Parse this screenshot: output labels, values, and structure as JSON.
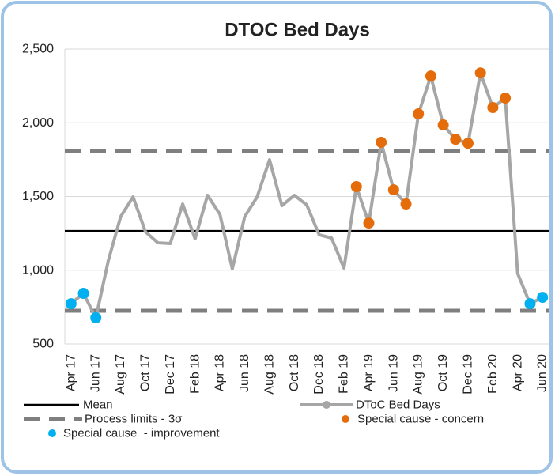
{
  "chart_data": {
    "type": "line",
    "title": "DTOC Bed Days",
    "categories": [
      "Apr 17",
      null,
      "Jun 17",
      null,
      "Aug 17",
      null,
      "Oct 17",
      null,
      "Dec 17",
      null,
      "Feb 18",
      null,
      "Apr 18",
      null,
      "Jun 18",
      null,
      "Aug 18",
      null,
      "Oct 18",
      null,
      "Dec 18",
      null,
      "Feb 19",
      null,
      "Apr 19",
      null,
      "Jun 19",
      null,
      "Aug 19",
      null,
      "Oct 19",
      null,
      "Dec 19",
      null,
      "Feb 20",
      null,
      "Apr 20",
      null,
      "Jun 20"
    ],
    "series": [
      {
        "name": "DToC Bed Days",
        "color": "#a6a6a6",
        "values": [
          773,
          843,
          677,
          1063,
          1363,
          1497,
          1261,
          1186,
          1181,
          1449,
          1213,
          1508,
          1379,
          1009,
          1363,
          1497,
          1749,
          1438,
          1508,
          1443,
          1240,
          1218,
          1015,
          1567,
          1320,
          1867,
          1545,
          1449,
          2060,
          2317,
          1985,
          1888,
          1861,
          2338,
          2103,
          2167,
          977,
          773,
          816
        ]
      },
      {
        "name": "Special cause - concern",
        "color": "#e46c0a",
        "marker": true,
        "values": [
          null,
          null,
          null,
          null,
          null,
          null,
          null,
          null,
          null,
          null,
          null,
          null,
          null,
          null,
          null,
          null,
          null,
          null,
          null,
          null,
          null,
          null,
          null,
          1567,
          1320,
          1867,
          1545,
          1449,
          2060,
          2317,
          1985,
          1888,
          1861,
          2338,
          2103,
          2167,
          null,
          null,
          null
        ]
      },
      {
        "name": "Special cause  - improvement",
        "color": "#00b0f0",
        "marker": true,
        "values": [
          773,
          843,
          677,
          null,
          null,
          null,
          null,
          null,
          null,
          null,
          null,
          null,
          null,
          null,
          null,
          null,
          null,
          null,
          null,
          null,
          null,
          null,
          null,
          null,
          null,
          null,
          null,
          null,
          null,
          null,
          null,
          null,
          null,
          null,
          null,
          null,
          null,
          773,
          816
        ]
      }
    ],
    "reference_lines": [
      {
        "name": "Mean",
        "color": "#000000",
        "style": "solid",
        "values": [
          1266
        ]
      },
      {
        "name": "Process limits - 3σ",
        "color": "#7f7f7f",
        "style": "dashed",
        "values": [
          1808,
          725
        ]
      }
    ],
    "ylim": [
      500,
      2500
    ],
    "yticks": [
      500,
      {
        "value": 1000,
        "label": "1,000"
      },
      {
        "value": 1500,
        "label": "1,500"
      },
      {
        "value": 2000,
        "label": "2,000"
      },
      {
        "value": 2500,
        "label": "2,500"
      }
    ],
    "grid": true
  }
}
